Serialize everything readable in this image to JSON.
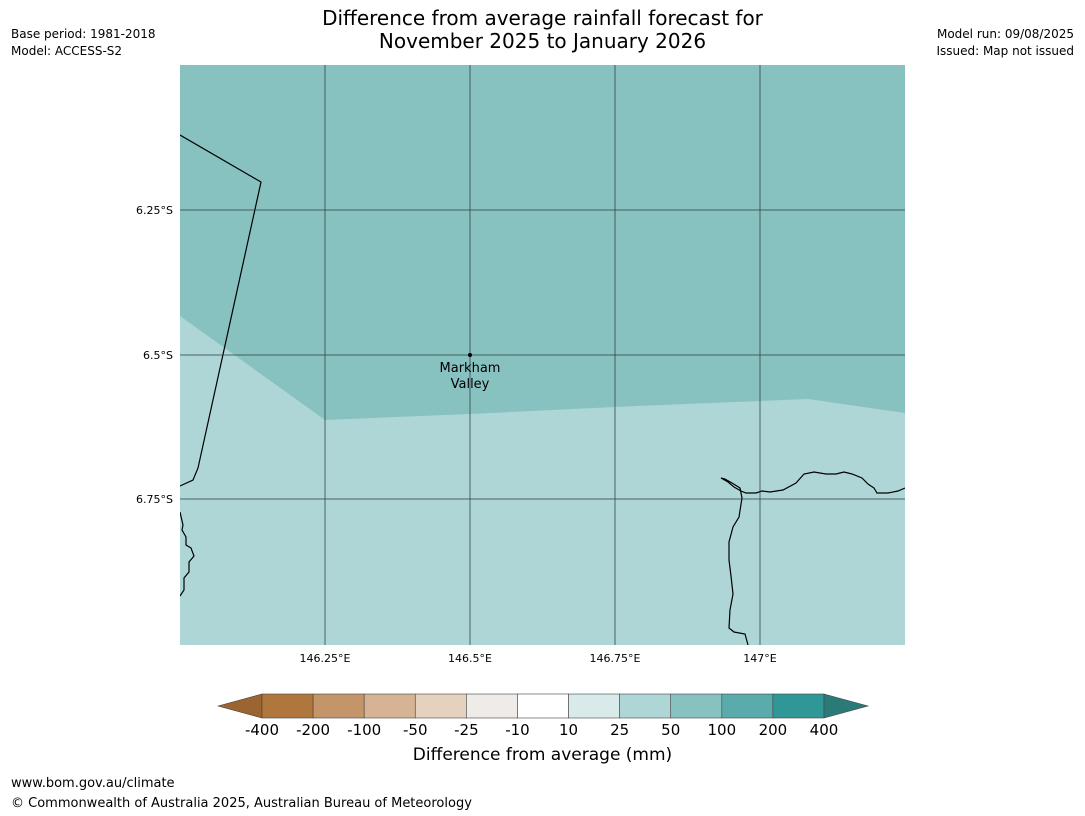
{
  "header": {
    "title_line1": "Difference from average rainfall forecast for",
    "title_line2": "November 2025 to January 2026",
    "base_period": "Base period: 1981-2018",
    "model": "Model: ACCESS-S2",
    "model_run": "Model run: 09/08/2025",
    "issued": "Issued: Map not issued"
  },
  "map": {
    "place_label_line1": "Markham",
    "place_label_line2": "Valley",
    "latitude_labels": [
      "6.25°S",
      "6.5°S",
      "6.75°S"
    ],
    "longitude_labels": [
      "146.25°E",
      "146.5°E",
      "146.75°E",
      "147°E"
    ],
    "region_colors": {
      "upper_band_50_to_100": "#87c2c1",
      "lower_band_25_to_50": "#aed6d6"
    }
  },
  "colorbar": {
    "title": "Difference from average (mm)",
    "tick_labels": [
      "-400",
      "-200",
      "-100",
      "-50",
      "-25",
      "-10",
      "10",
      "25",
      "50",
      "100",
      "200",
      "400"
    ],
    "colors": [
      "#9c6430",
      "#b0773d",
      "#c39568",
      "#d5b393",
      "#e5d2be",
      "#eeebe8",
      "#ffffff",
      "#d8ebea",
      "#aed6d6",
      "#87c2c1",
      "#5aacac",
      "#2f9795",
      "#2a7a78"
    ]
  },
  "footer": {
    "url": "www.bom.gov.au/climate",
    "copyright": "© Commonwealth of Australia 2025, Australian Bureau of Meteorology"
  }
}
